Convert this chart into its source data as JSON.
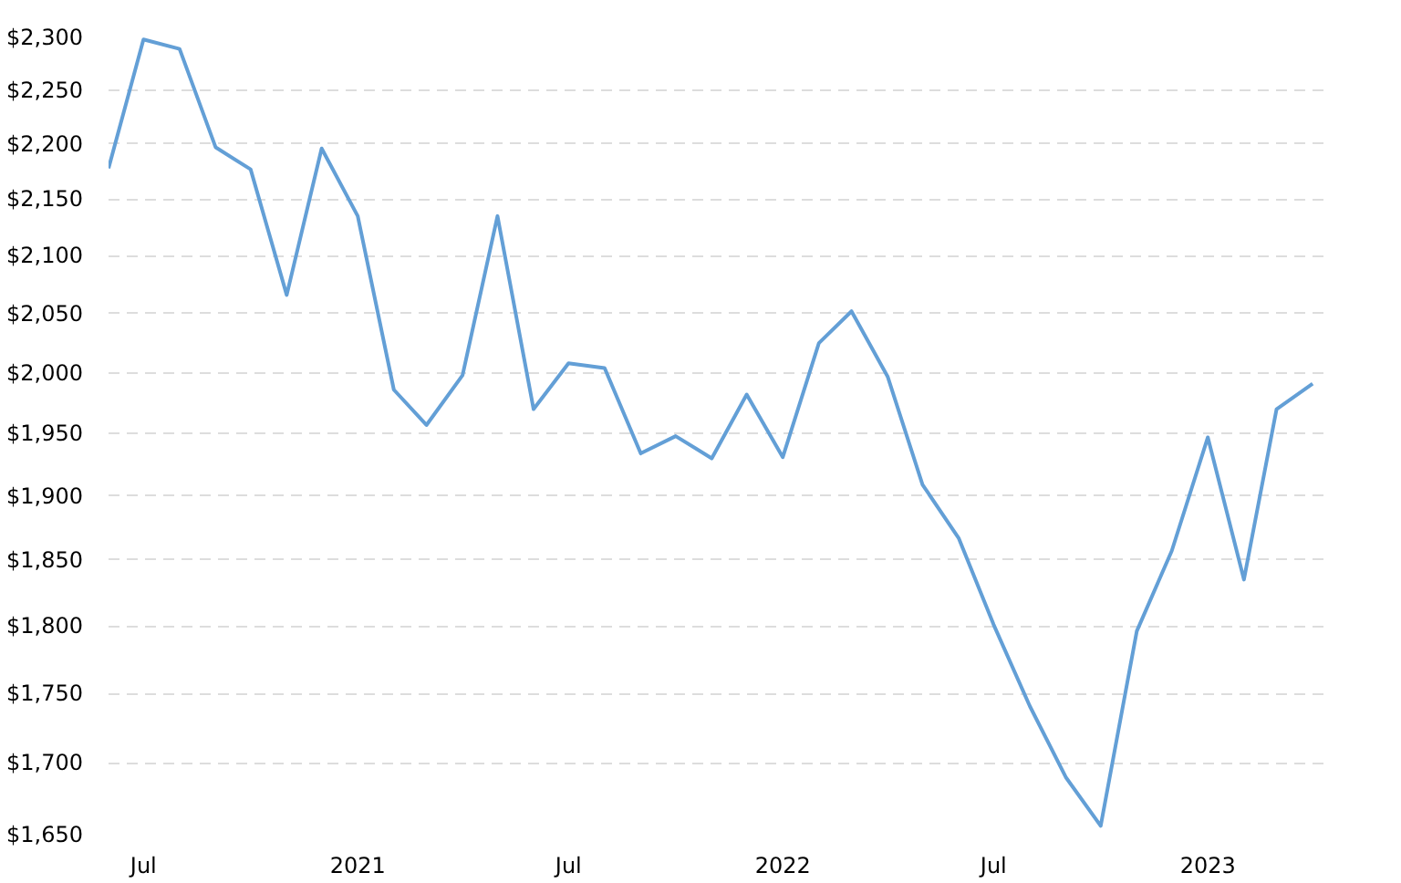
{
  "chart_data": {
    "type": "line",
    "x": [
      "2020-06",
      "2020-07",
      "2020-08",
      "2020-09",
      "2020-10",
      "2020-11",
      "2020-12",
      "2021-01",
      "2021-02",
      "2021-03",
      "2021-04",
      "2021-05",
      "2021-06",
      "2021-07",
      "2021-08",
      "2021-09",
      "2021-10",
      "2021-11",
      "2021-12",
      "2022-01",
      "2022-02",
      "2022-03",
      "2022-04",
      "2022-05",
      "2022-06",
      "2022-07",
      "2022-08",
      "2022-09",
      "2022-10",
      "2022-11",
      "2022-12",
      "2023-01",
      "2023-02",
      "2023-03",
      "2023-04"
    ],
    "series": [
      {
        "color": "#639fd6",
        "values": [
          2178,
          2298,
          2289,
          2197,
          2177,
          2066,
          2196,
          2135,
          1986,
          1957,
          1998,
          2135,
          1970,
          2008,
          2004,
          1934,
          1948,
          1930,
          1982,
          1931,
          2025,
          2052,
          1997,
          1909,
          1867,
          1801,
          1741,
          1690,
          1656,
          1796,
          1857,
          1947,
          1835,
          1970,
          1991
        ]
      }
    ],
    "log": "y",
    "xlim": [
      "2020-06",
      "2023-04-15"
    ],
    "xticks": [
      {
        "value": "2020-07",
        "label": "Jul"
      },
      {
        "value": "2021-01",
        "label": "2021"
      },
      {
        "value": "2021-07",
        "label": "Jul"
      },
      {
        "value": "2022-01",
        "label": "2022"
      },
      {
        "value": "2022-07",
        "label": "Jul"
      },
      {
        "value": "2023-01",
        "label": "2023"
      }
    ],
    "ylim": [
      1650,
      2300
    ],
    "yticks": [
      {
        "value": 1650,
        "label": "$1,650"
      },
      {
        "value": 1700,
        "label": "$1,700"
      },
      {
        "value": 1750,
        "label": "$1,750"
      },
      {
        "value": 1800,
        "label": "$1,800"
      },
      {
        "value": 1850,
        "label": "$1,850"
      },
      {
        "value": 1900,
        "label": "$1,900"
      },
      {
        "value": 1950,
        "label": "$1,950"
      },
      {
        "value": 2000,
        "label": "$2,000"
      },
      {
        "value": 2050,
        "label": "$2,050"
      },
      {
        "value": 2100,
        "label": "$2,100"
      },
      {
        "value": 2150,
        "label": "$2,150"
      },
      {
        "value": 2200,
        "label": "$2,200"
      },
      {
        "value": 2250,
        "label": "$2,250"
      },
      {
        "value": 2300,
        "label": "$2,300"
      }
    ],
    "grid": "y",
    "marker": "none",
    "line_style": "solid"
  }
}
